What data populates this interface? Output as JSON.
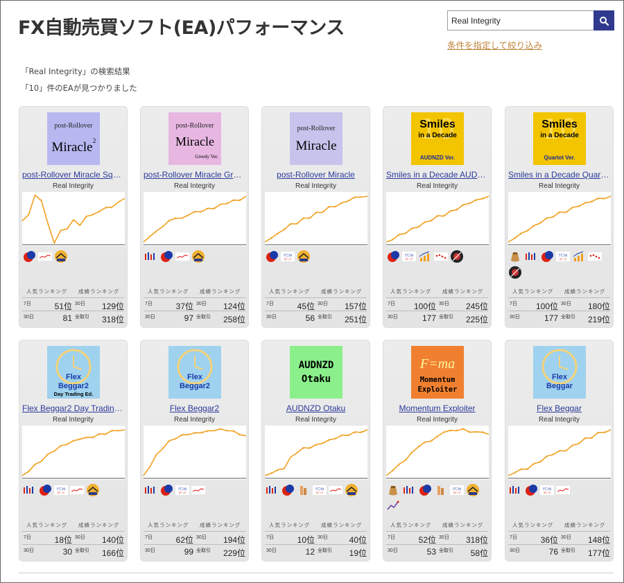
{
  "page_title": "FX自動売買ソフト(EA)パフォーマンス",
  "search": {
    "value": "Real Integrity"
  },
  "filter_link": "条件を指定して絞り込み",
  "result_query": "「Real Integrity」の検索結果",
  "result_count": "「10」件のEAが見つかりました",
  "rank_labels": {
    "popular": "人気ランキング",
    "performance": "成績ランキング",
    "d7": "7日",
    "d30": "30日",
    "all": "全取引"
  },
  "colors": {
    "accent": "#2f3a8f",
    "link": "#2b3a9a",
    "chart_line": "#f0a020",
    "filter": "#c0843a"
  },
  "cards": [
    {
      "name": "post-Rollover Miracle Squ...",
      "author": "Real Integrity",
      "thumb_style": "miracle2",
      "thumb_text": [
        "post-Rollover",
        "Miracle",
        "2"
      ],
      "r7": "51位",
      "r30p": "129位",
      "r30": "81",
      "rall": "318位",
      "icons": [
        "jp-flag-icon",
        "mini-chart-icon",
        "scale-icon"
      ]
    },
    {
      "name": "post-Rollover Miracle Gree...",
      "author": "Real Integrity",
      "thumb_style": "greedy",
      "thumb_text": [
        "post-Rollover",
        "Miracle",
        "Greedy Ver."
      ],
      "r7": "37位",
      "r30p": "124位",
      "r30": "97",
      "rall": "258位",
      "icons": [
        "candles-icon",
        "jp-flag-icon",
        "mini-chart-icon",
        "scale-icon"
      ]
    },
    {
      "name": "post-Rollover Miracle",
      "author": "Real Integrity",
      "thumb_style": "miracle",
      "thumb_text": [
        "post-Rollover",
        "Miracle",
        ""
      ],
      "r7": "45位",
      "r30p": "157位",
      "r30": "56",
      "rall": "251位",
      "icons": [
        "jp-flag-icon",
        "text-badge-icon",
        "scale-icon"
      ]
    },
    {
      "name": "Smiles in a Decade AUDN...",
      "author": "Real Integrity",
      "thumb_style": "smiles",
      "thumb_text": [
        "Smiles",
        "in a Decade",
        "AUDNZD Ver."
      ],
      "r7": "100位",
      "r30p": "245位",
      "r30": "177",
      "rall": "225位",
      "icons": [
        "jp-flag-icon",
        "text-badge-icon",
        "bar-up-icon",
        "dots-icon",
        "tool-icon"
      ]
    },
    {
      "name": "Smiles in a Decade Quarte...",
      "author": "Real Integrity",
      "thumb_style": "smiles",
      "thumb_text": [
        "Smiles",
        "in a Decade",
        "Quartet Ver."
      ],
      "r7": "100位",
      "r30p": "180位",
      "r30": "177",
      "rall": "219位",
      "icons": [
        "money-bag-icon",
        "candles-icon",
        "jp-flag-icon",
        "text-badge-icon",
        "bar-up-icon",
        "dots-icon",
        "tool-icon"
      ]
    },
    {
      "name": "Flex Beggar2 Day Trading ...",
      "author": "Real Integrity",
      "thumb_style": "clock",
      "thumb_text": [
        "Flex",
        "Beggar2",
        "Day Trading Ed."
      ],
      "r7": "18位",
      "r30p": "140位",
      "r30": "30",
      "rall": "166位",
      "icons": [
        "candles-icon",
        "jp-flag-icon",
        "text-badge-icon",
        "mini-chart-icon",
        "scale-icon"
      ]
    },
    {
      "name": "Flex Beggar2",
      "author": "Real Integrity",
      "thumb_style": "clock",
      "thumb_text": [
        "Flex",
        "Beggar2",
        ""
      ],
      "r7": "62位",
      "r30p": "194位",
      "r30": "99",
      "rall": "229位",
      "icons": [
        "candles-icon",
        "jp-flag-icon",
        "text-badge-icon",
        "mini-chart-icon"
      ]
    },
    {
      "name": "AUDNZD Otaku",
      "author": "Real Integrity",
      "thumb_style": "otaku",
      "thumb_text": [
        "AUDNZD",
        "Otaku",
        ""
      ],
      "r7": "10位",
      "r30p": "40位",
      "r30": "12",
      "rall": "19位",
      "icons": [
        "candles-icon",
        "jp-flag-icon",
        "hand-icon",
        "text-badge-icon",
        "mini-chart-icon",
        "scale-icon"
      ]
    },
    {
      "name": "Momentum Exploiter",
      "author": "Real Integrity",
      "thumb_style": "momentum",
      "thumb_text": [
        "F=ma",
        "Momentum",
        "Exploiter"
      ],
      "r7": "52位",
      "r30p": "318位",
      "r30": "53",
      "rall": "58位",
      "icons": [
        "money-bag-icon",
        "candles-icon",
        "jp-flag-icon",
        "hand-icon",
        "text-badge-icon",
        "scale-icon",
        "line-icon"
      ]
    },
    {
      "name": "Flex Beggar",
      "author": "Real Integrity",
      "thumb_style": "clock",
      "thumb_text": [
        "Flex",
        "Beggar",
        ""
      ],
      "r7": "36位",
      "r30p": "148位",
      "r30": "76",
      "rall": "177位",
      "icons": [
        "candles-icon",
        "jp-flag-icon",
        "text-badge-icon",
        "mini-chart-icon"
      ]
    }
  ],
  "chart_data": [
    {
      "type": "line",
      "series": [
        {
          "values": [
            0,
            10,
            35,
            30,
            -5,
            -30,
            -15,
            -10,
            0,
            -5,
            5,
            10,
            12,
            20,
            18,
            28,
            32
          ]
        }
      ]
    },
    {
      "type": "line",
      "series": [
        {
          "values": [
            0,
            8,
            12,
            20,
            25,
            30,
            28,
            34,
            36,
            38,
            40,
            42,
            45,
            48,
            50,
            52,
            56
          ]
        }
      ]
    },
    {
      "type": "line",
      "series": [
        {
          "values": [
            0,
            5,
            8,
            14,
            18,
            20,
            24,
            26,
            30,
            32,
            36,
            38,
            40,
            44,
            46,
            48,
            48
          ]
        }
      ]
    },
    {
      "type": "line",
      "series": [
        {
          "values": [
            0,
            4,
            8,
            12,
            16,
            20,
            24,
            28,
            32,
            34,
            38,
            42,
            46,
            50,
            52,
            56,
            58
          ]
        }
      ]
    },
    {
      "type": "line",
      "series": [
        {
          "values": [
            0,
            6,
            10,
            16,
            20,
            26,
            30,
            34,
            38,
            40,
            44,
            48,
            50,
            54,
            56,
            58,
            60
          ]
        }
      ]
    },
    {
      "type": "line",
      "series": [
        {
          "values": [
            0,
            6,
            12,
            18,
            24,
            30,
            34,
            38,
            40,
            44,
            44,
            46,
            48,
            50,
            52,
            54,
            54
          ]
        }
      ]
    },
    {
      "type": "line",
      "series": [
        {
          "values": [
            0,
            10,
            20,
            28,
            34,
            38,
            40,
            42,
            42,
            44,
            44,
            46,
            46,
            46,
            44,
            42,
            40
          ]
        }
      ]
    },
    {
      "type": "line",
      "series": [
        {
          "values": [
            0,
            4,
            6,
            10,
            22,
            30,
            34,
            36,
            38,
            42,
            44,
            48,
            50,
            52,
            54,
            56,
            58
          ]
        }
      ]
    },
    {
      "type": "line",
      "series": [
        {
          "values": [
            0,
            8,
            14,
            22,
            30,
            40,
            44,
            48,
            52,
            60,
            60,
            62,
            62,
            60,
            58,
            60,
            56
          ]
        }
      ]
    },
    {
      "type": "line",
      "series": [
        {
          "values": [
            0,
            4,
            6,
            8,
            12,
            16,
            20,
            24,
            26,
            28,
            32,
            36,
            40,
            42,
            46,
            48,
            50
          ]
        }
      ]
    }
  ]
}
